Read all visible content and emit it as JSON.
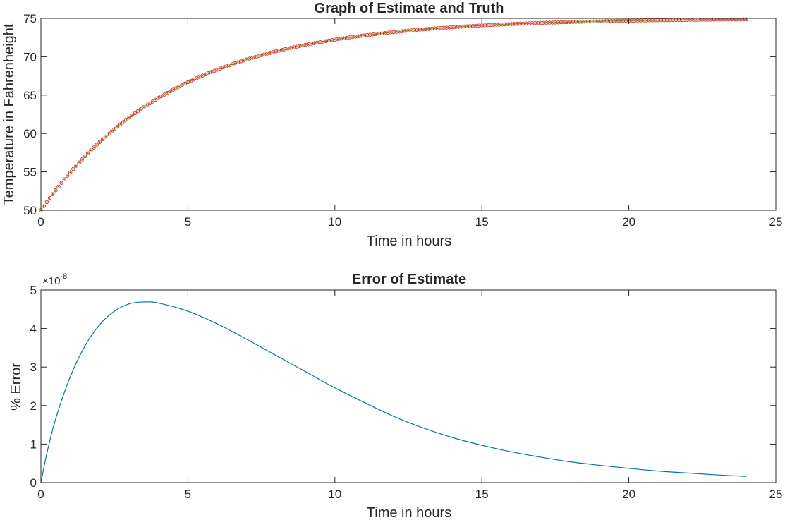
{
  "chart_data": [
    {
      "type": "scatter",
      "title": "Graph of Estimate and Truth",
      "xlabel": "Time in hours",
      "ylabel": "Temperature in Fahrenheight",
      "xlim": [
        0,
        25
      ],
      "ylim": [
        50,
        75
      ],
      "xticks": [
        "0",
        "5",
        "10",
        "15",
        "20",
        "25"
      ],
      "yticks": [
        "50",
        "55",
        "60",
        "65",
        "70",
        "75"
      ],
      "grid": false,
      "model": {
        "initial": 50,
        "ambient": 75,
        "rate_per_hour": 0.22,
        "x_end": 24,
        "step": 0.1
      },
      "series": [
        {
          "marker": "dot",
          "color": "#808000",
          "values_note": "truth"
        },
        {
          "marker": "circle",
          "color": "#d62728",
          "values_note": "estimate"
        }
      ]
    },
    {
      "type": "line",
      "title": "Error of Estimate",
      "xlabel": "Time in hours",
      "ylabel": "% Error",
      "xlim": [
        0,
        25
      ],
      "ylim": [
        0,
        5
      ],
      "xticks": [
        "0",
        "5",
        "10",
        "15",
        "20",
        "25"
      ],
      "yticks": [
        "0",
        "1",
        "2",
        "3",
        "4",
        "5"
      ],
      "exponent_label": {
        "base": "×10",
        "power": "-8"
      },
      "grid": false,
      "color": "#0072bd",
      "x": [
        0,
        0.2,
        0.5,
        1,
        1.5,
        2,
        2.5,
        3,
        3.5,
        4,
        5,
        6,
        7,
        8,
        9,
        10,
        11,
        12,
        13,
        14,
        15,
        16,
        17,
        18,
        19,
        20,
        21,
        22,
        23,
        24
      ],
      "values": [
        0,
        0.75,
        1.65,
        2.75,
        3.55,
        4.1,
        4.45,
        4.64,
        4.69,
        4.66,
        4.45,
        4.12,
        3.72,
        3.3,
        2.88,
        2.46,
        2.08,
        1.72,
        1.42,
        1.17,
        0.97,
        0.8,
        0.66,
        0.54,
        0.45,
        0.37,
        0.3,
        0.25,
        0.2,
        0.16
      ]
    }
  ]
}
